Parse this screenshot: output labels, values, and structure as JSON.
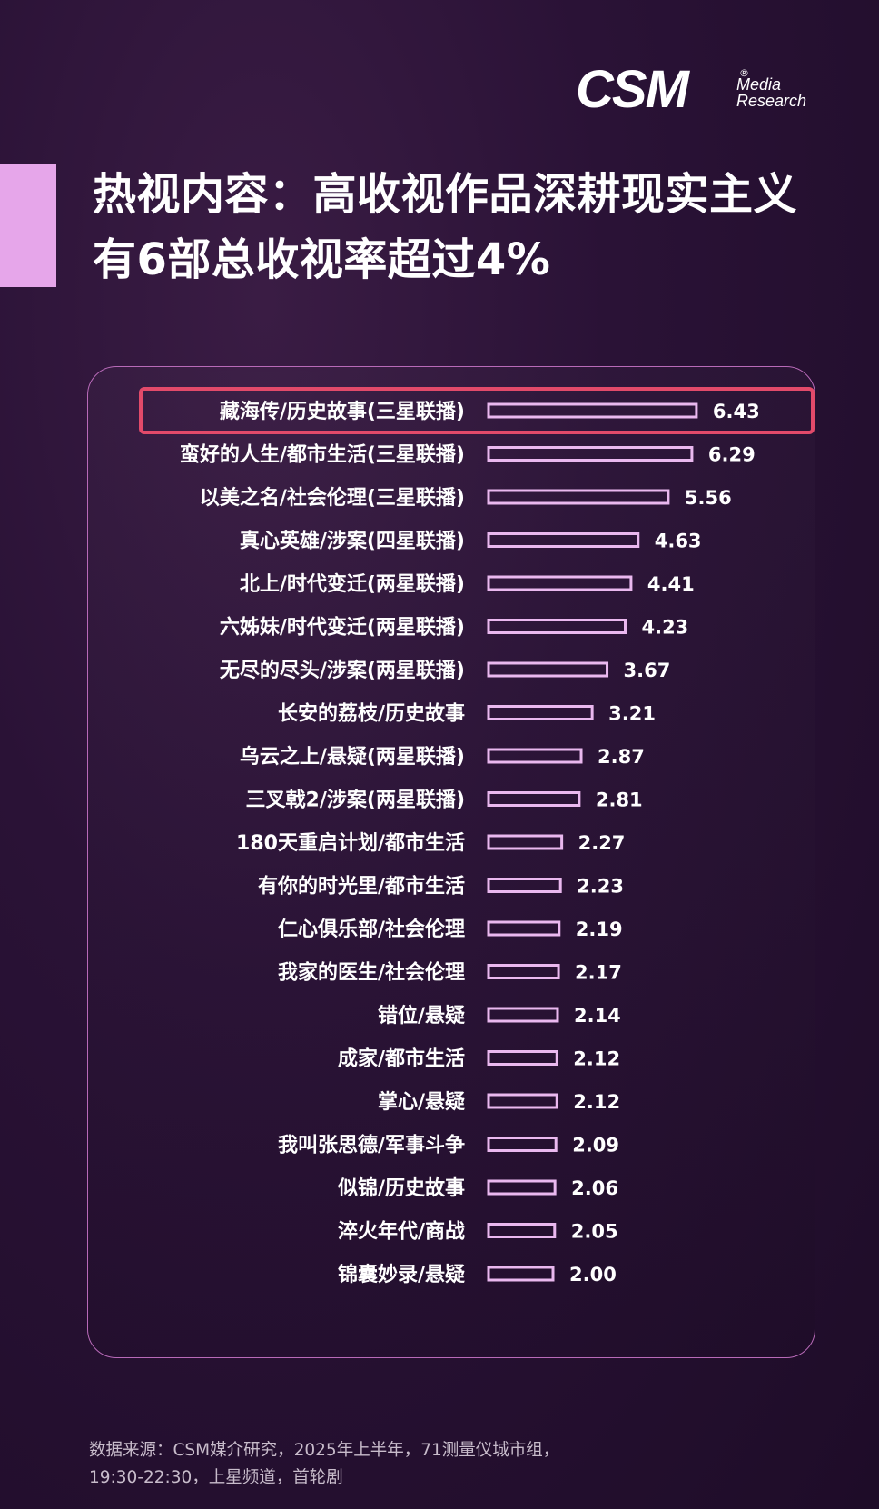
{
  "logo": {
    "main": "CSM",
    "registered": "®",
    "sub_line1": "Media",
    "sub_line2": "Research"
  },
  "title": {
    "line1": "热视内容：高收视作品深耕现实主义",
    "line2": "有6部总收视率超过4%"
  },
  "source": {
    "line1": "数据来源：CSM媒介研究，2025年上半年，71测量仪城市组，",
    "line2": "19:30-22:30，上星频道，首轮剧"
  },
  "colors": {
    "bar_outline": "#eab8ef",
    "highlight_box": "#e24a6a",
    "panel_border": "#b86ab8",
    "accent": "#e6a6ea"
  },
  "chart_data": {
    "type": "bar",
    "orientation": "horizontal",
    "highlighted_category": "藏海传/历史故事(三星联播)",
    "categories": [
      "藏海传/历史故事(三星联播)",
      "蛮好的人生/都市生活(三星联播)",
      "以美之名/社会伦理(三星联播)",
      "真心英雄/涉案(四星联播)",
      "北上/时代变迁(两星联播)",
      "六姊妹/时代变迁(两星联播)",
      "无尽的尽头/涉案(两星联播)",
      "长安的荔枝/历史故事",
      "乌云之上/悬疑(两星联播)",
      "三叉戟2/涉案(两星联播)",
      "180天重启计划/都市生活",
      "有你的时光里/都市生活",
      "仁心俱乐部/社会伦理",
      "我家的医生/社会伦理",
      "错位/悬疑",
      "成家/都市生活",
      "掌心/悬疑",
      "我叫张思德/军事斗争",
      "似锦/历史故事",
      "淬火年代/商战",
      "锦囊妙录/悬疑"
    ],
    "values": [
      6.43,
      6.29,
      5.56,
      4.63,
      4.41,
      4.23,
      3.67,
      3.21,
      2.87,
      2.81,
      2.27,
      2.23,
      2.19,
      2.17,
      2.14,
      2.12,
      2.12,
      2.09,
      2.06,
      2.05,
      2.0
    ],
    "value_labels": [
      "6.43",
      "6.29",
      "5.56",
      "4.63",
      "4.41",
      "4.23",
      "3.67",
      "3.21",
      "2.87",
      "2.81",
      "2.27",
      "2.23",
      "2.19",
      "2.17",
      "2.14",
      "2.12",
      "2.12",
      "2.09",
      "2.06",
      "2.05",
      "2.00"
    ],
    "xlim": [
      0,
      6.43
    ],
    "grid": false,
    "legend": "none"
  }
}
